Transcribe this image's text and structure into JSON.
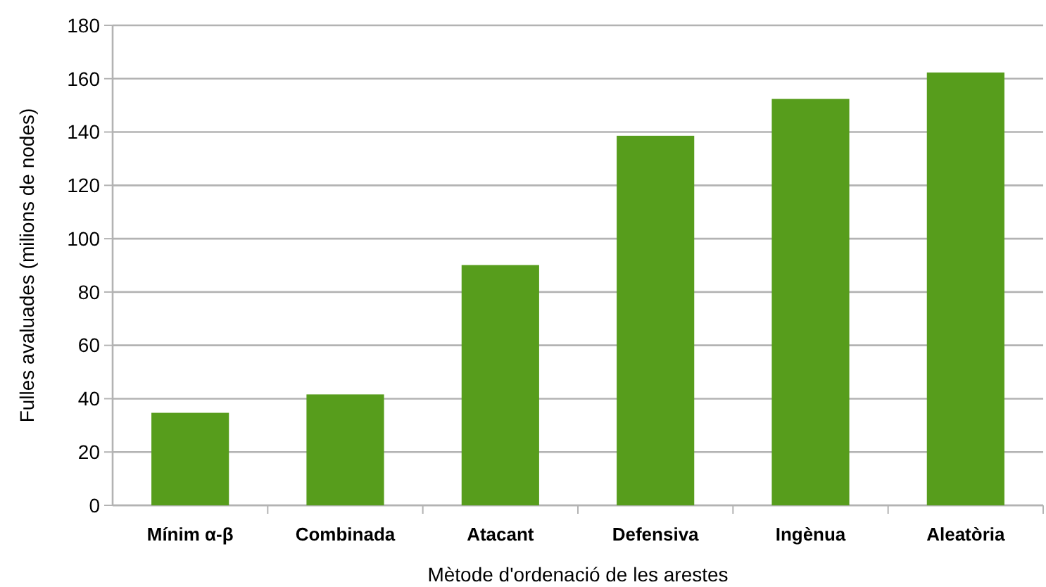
{
  "chart_data": {
    "type": "bar",
    "xlabel": "Mètode d'ordenació de les arestes",
    "ylabel": "Fulles avaluades (milions de nodes)",
    "categories": [
      "Mínim α-β",
      "Combinada",
      "Atacant",
      "Defensiva",
      "Ingènua",
      "Aleatòria"
    ],
    "values": [
      34.7,
      41.6,
      90.1,
      138.6,
      152.4,
      162.3
    ],
    "color": "#579d1c",
    "ylim": [
      0,
      180
    ],
    "yticks": [
      0,
      20,
      40,
      60,
      80,
      100,
      120,
      140,
      160,
      180
    ],
    "grid": "y"
  }
}
